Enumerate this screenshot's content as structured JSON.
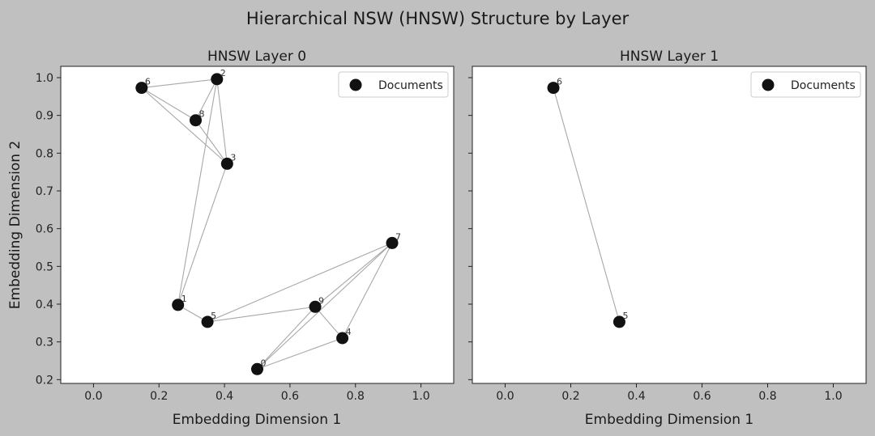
{
  "chart_data": {
    "type": "scatter",
    "suptitle": "Hierarchical NSW (HNSW) Structure by Layer",
    "subplots": [
      {
        "title": "HNSW Layer 0",
        "xlabel": "Embedding Dimension 1",
        "ylabel": "Embedding Dimension 2",
        "xlim": [
          -0.1,
          1.1
        ],
        "ylim": [
          0.19,
          1.03
        ],
        "xticks": [
          0.0,
          0.2,
          0.4,
          0.6,
          0.8,
          1.0
        ],
        "yticks": [
          0.2,
          0.3,
          0.4,
          0.5,
          0.6,
          0.7,
          0.8,
          0.9,
          1.0
        ],
        "xtick_labels": [
          "0.0",
          "0.2",
          "0.4",
          "0.6",
          "0.8",
          "1.0"
        ],
        "ytick_labels": [
          "0.2",
          "0.3",
          "0.4",
          "0.5",
          "0.6",
          "0.7",
          "0.8",
          "0.9",
          "1.0"
        ],
        "legend": {
          "label": "Documents",
          "position": "top-right"
        },
        "points": [
          {
            "id": "0",
            "x": 0.5,
            "y": 0.228
          },
          {
            "id": "1",
            "x": 0.258,
            "y": 0.398
          },
          {
            "id": "2",
            "x": 0.377,
            "y": 0.996
          },
          {
            "id": "3",
            "x": 0.408,
            "y": 0.772
          },
          {
            "id": "4",
            "x": 0.76,
            "y": 0.31
          },
          {
            "id": "5",
            "x": 0.348,
            "y": 0.353
          },
          {
            "id": "6",
            "x": 0.147,
            "y": 0.973
          },
          {
            "id": "7",
            "x": 0.912,
            "y": 0.562
          },
          {
            "id": "8",
            "x": 0.312,
            "y": 0.887
          },
          {
            "id": "9",
            "x": 0.677,
            "y": 0.393
          }
        ],
        "edges": [
          [
            "6",
            "2"
          ],
          [
            "6",
            "8"
          ],
          [
            "6",
            "3"
          ],
          [
            "2",
            "8"
          ],
          [
            "2",
            "3"
          ],
          [
            "2",
            "1"
          ],
          [
            "8",
            "3"
          ],
          [
            "3",
            "1"
          ],
          [
            "1",
            "5"
          ],
          [
            "5",
            "7"
          ],
          [
            "5",
            "9"
          ],
          [
            "9",
            "7"
          ],
          [
            "9",
            "0"
          ],
          [
            "9",
            "4"
          ],
          [
            "7",
            "0"
          ],
          [
            "7",
            "4"
          ],
          [
            "4",
            "0"
          ]
        ]
      },
      {
        "title": "HNSW Layer 1",
        "xlabel": "Embedding Dimension 1",
        "ylabel": "",
        "xlim": [
          -0.1,
          1.1
        ],
        "ylim": [
          0.19,
          1.03
        ],
        "xticks": [
          0.0,
          0.2,
          0.4,
          0.6,
          0.8,
          1.0
        ],
        "yticks": [
          0.2,
          0.3,
          0.4,
          0.5,
          0.6,
          0.7,
          0.8,
          0.9,
          1.0
        ],
        "xtick_labels": [
          "0.0",
          "0.2",
          "0.4",
          "0.6",
          "0.8",
          "1.0"
        ],
        "ytick_labels": [],
        "legend": {
          "label": "Documents",
          "position": "top-right"
        },
        "points": [
          {
            "id": "6",
            "x": 0.147,
            "y": 0.973
          },
          {
            "id": "5",
            "x": 0.348,
            "y": 0.353
          }
        ],
        "edges": [
          [
            "6",
            "5"
          ]
        ]
      }
    ]
  },
  "colors": {
    "figure_background": "#c0c0c0",
    "axes_background": "#ffffff",
    "point": "#111111",
    "edge": "#a8a8a8"
  }
}
